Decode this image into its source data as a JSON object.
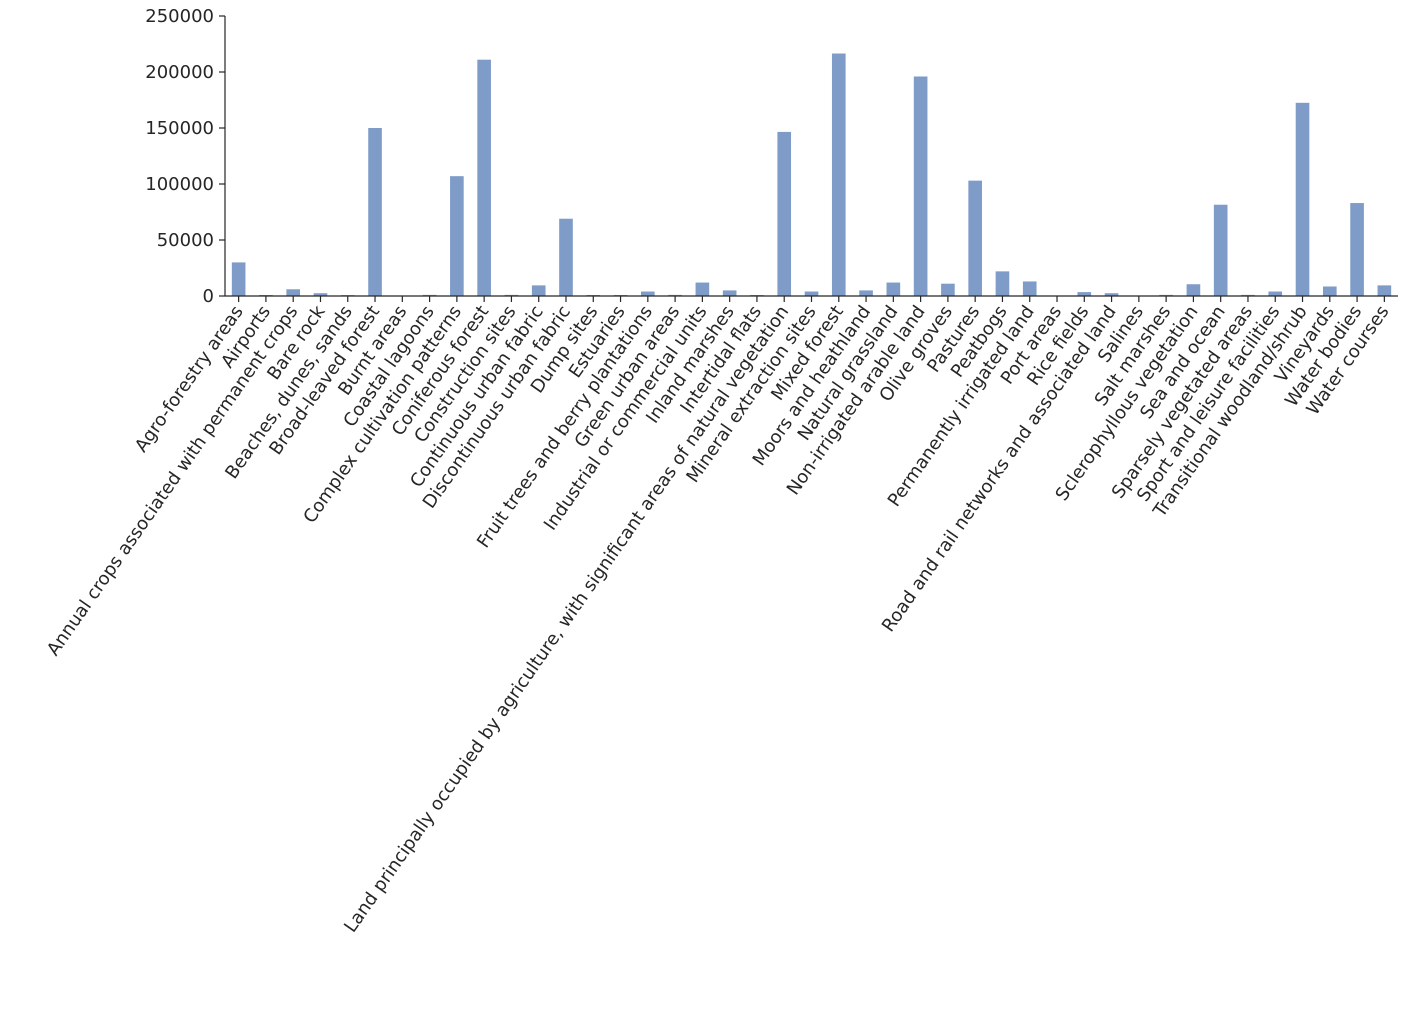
{
  "chart_data": {
    "type": "bar",
    "title": "",
    "xlabel": "",
    "ylabel": "",
    "ylim": [
      0,
      250000
    ],
    "yticks": [
      0,
      50000,
      100000,
      150000,
      200000,
      250000
    ],
    "grid": false,
    "legend": "none",
    "bar_color": "#7f9cc9",
    "categories": [
      "Agro-forestry areas",
      "Airports",
      "Annual crops associated with permanent crops",
      "Bare rock",
      "Beaches, dunes, sands",
      "Broad-leaved forest",
      "Burnt areas",
      "Coastal lagoons",
      "Complex cultivation patterns",
      "Coniferous forest",
      "Construction sites",
      "Continuous urban fabric",
      "Discontinuous urban fabric",
      "Dump sites",
      "Estuaries",
      "Fruit trees and berry plantations",
      "Green urban areas",
      "Industrial or commercial units",
      "Inland marshes",
      "Intertidal flats",
      "Land principally occupied by agriculture, with significant areas of natural vegetation",
      "Mineral extraction sites",
      "Mixed forest",
      "Moors and heathland",
      "Natural grassland",
      "Non-irrigated arable land",
      "Olive groves",
      "Pastures",
      "Peatbogs",
      "Permanently irrigated land",
      "Port areas",
      "Rice fields",
      "Road and rail networks and associated land",
      "Salines",
      "Salt marshes",
      "Sclerophyllous vegetation",
      "Sea and ocean",
      "Sparsely vegetated areas",
      "Sport and leisure facilities",
      "Transitional woodland/shrub",
      "Vineyards",
      "Water bodies",
      "Water courses"
    ],
    "values": [
      30000,
      900,
      6000,
      2500,
      800,
      150000,
      300,
      1000,
      107000,
      211000,
      1000,
      9500,
      69000,
      900,
      900,
      4000,
      1000,
      12000,
      5000,
      900,
      146500,
      4000,
      216500,
      5000,
      12000,
      196000,
      11000,
      103000,
      22000,
      13000,
      300,
      3500,
      2500,
      300,
      1000,
      10500,
      81500,
      1000,
      4000,
      172500,
      8500,
      83000,
      9500
    ]
  }
}
